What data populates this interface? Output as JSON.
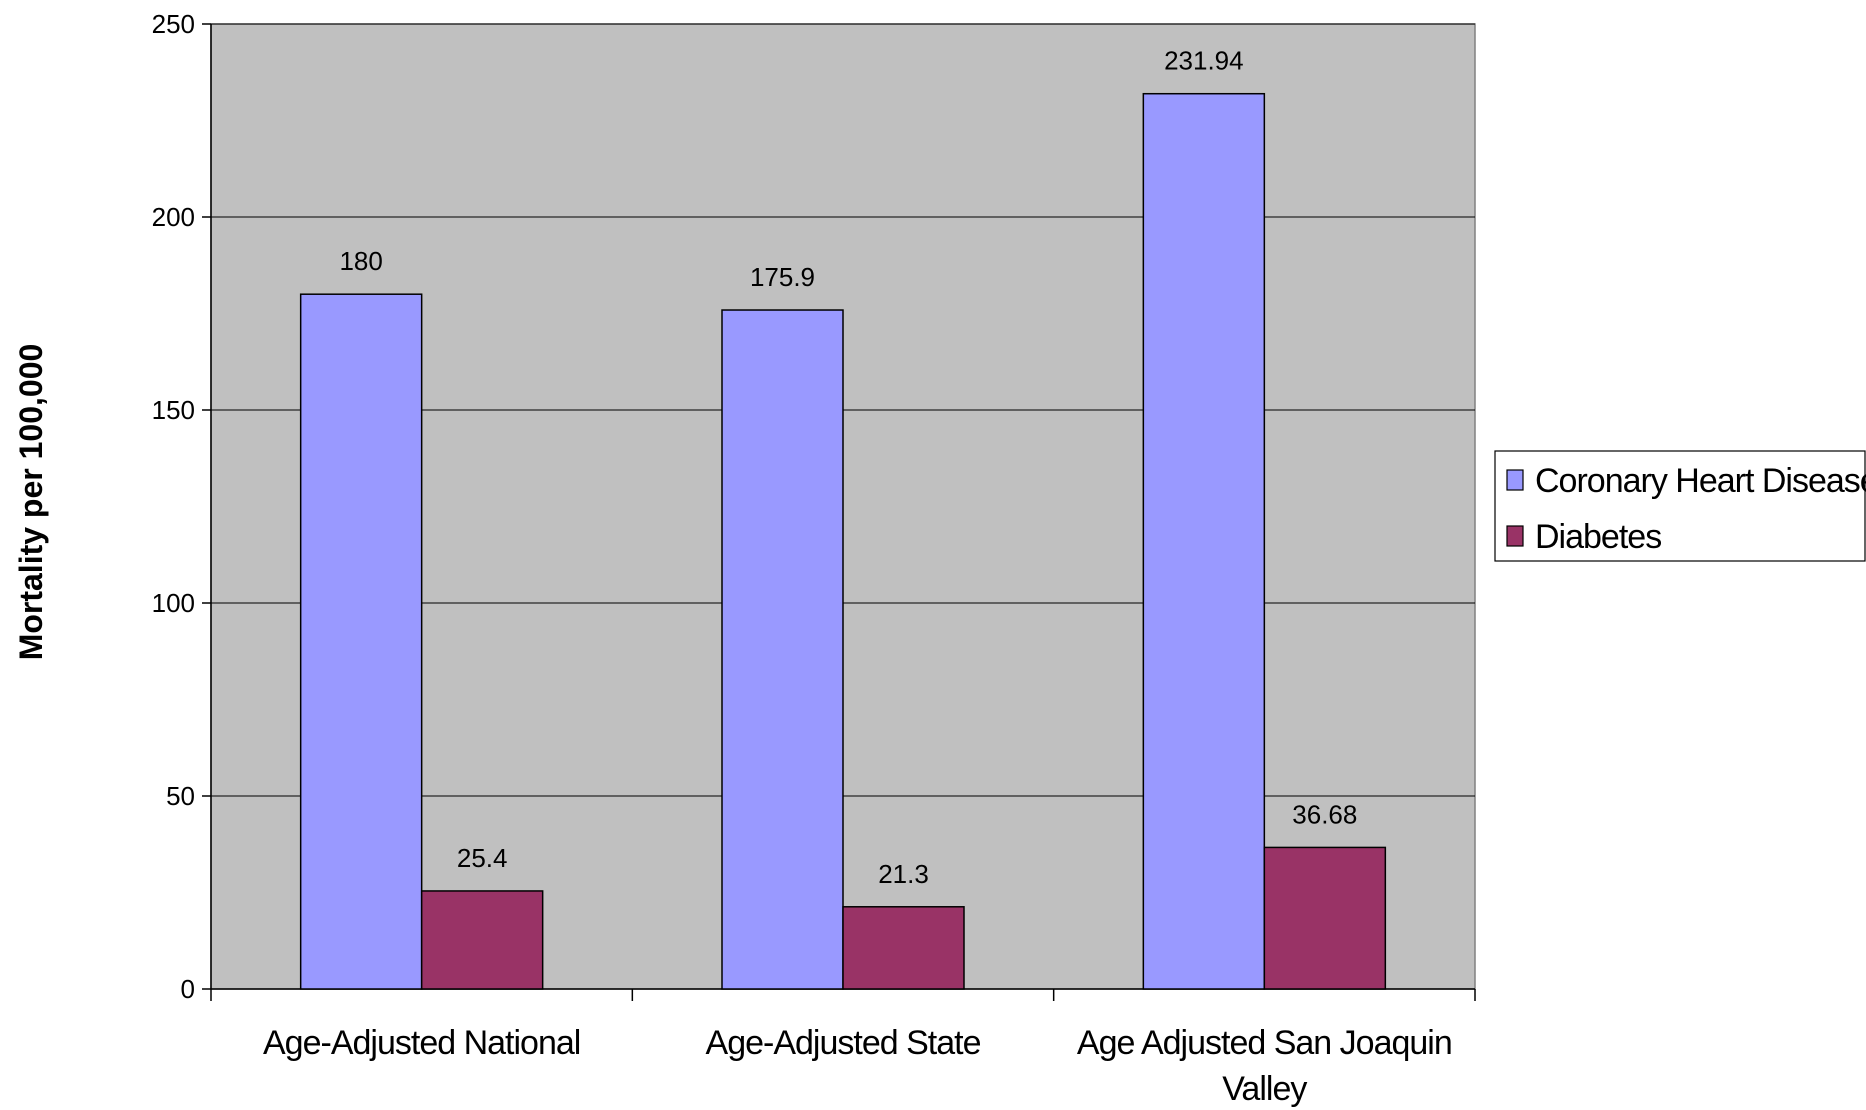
{
  "chart_data": {
    "type": "bar",
    "title": "",
    "xlabel": "",
    "ylabel": "Mortality per 100,000",
    "ylim": [
      0,
      250
    ],
    "yticks": [
      0,
      50,
      100,
      150,
      200,
      250
    ],
    "grid": true,
    "legend_position": "right",
    "categories": [
      [
        "Age-Adjusted National"
      ],
      [
        "Age-Adjusted State"
      ],
      [
        "Age Adjusted San Joaquin",
        "Valley"
      ]
    ],
    "series": [
      {
        "name": "Coronary Heart Disease",
        "color": "#9999ff",
        "values": [
          180,
          175.9,
          231.94
        ],
        "labels": [
          "180",
          "175.9",
          "231.94"
        ]
      },
      {
        "name": "Diabetes",
        "color": "#993366",
        "values": [
          25.4,
          21.3,
          36.68
        ],
        "labels": [
          "25.4",
          "21.3",
          "36.68"
        ]
      }
    ],
    "plot_background": "#c0c0c0"
  }
}
